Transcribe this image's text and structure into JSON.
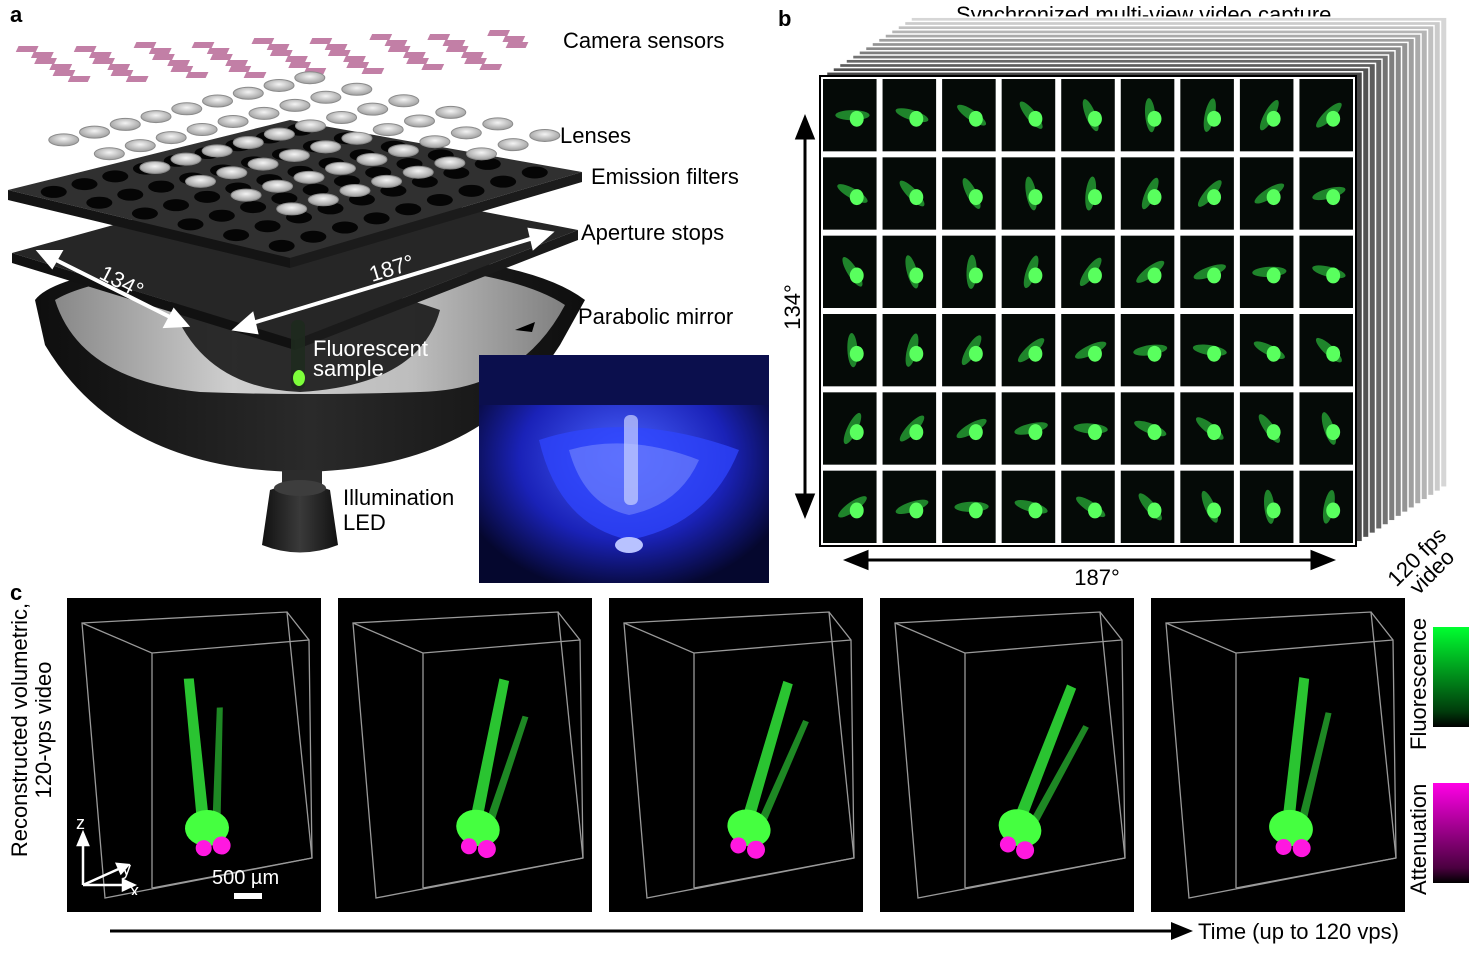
{
  "panel_a": {
    "letter": "a",
    "labels": {
      "camera_sensors": "Camera sensors",
      "lenses": "Lenses",
      "emission_filters": "Emission filters",
      "aperture_stops": "Aperture stops",
      "parabolic_mirror": "Parabolic mirror",
      "fluorescent_sample_line1": "Fluorescent",
      "fluorescent_sample_line2": "sample",
      "illumination_led_line1": "Illumination",
      "illumination_led_line2": "LED",
      "angle_134": "134°",
      "angle_187": "187°"
    },
    "colors": {
      "sensor": "#c27fa6",
      "plate": "#2f2f2f",
      "lens": "#d5d5d5",
      "mirror": "#1c1c1c",
      "photo_blue": "#1f2bd8"
    }
  },
  "panel_b": {
    "letter": "b",
    "title": "Synchronized multi-view video capture",
    "grid": {
      "rows": 6,
      "cols": 9
    },
    "vertical_label": "134°",
    "horizontal_label": "187°",
    "video_label_line1": "120 fps",
    "video_label_line2": "video"
  },
  "panel_c": {
    "letter": "c",
    "ylabel_line1": "Reconstructed volumetric,",
    "ylabel_line2": "120-vps video",
    "axes": {
      "z": "z",
      "y": "y",
      "x": "x"
    },
    "scale_bar": "500 µm",
    "time_label": "Time (up to 120 vps)",
    "frames_count": 5,
    "colorbars": [
      {
        "label": "Fluorescence",
        "color": "#00ff00"
      },
      {
        "label": "Attenuation",
        "color": "#ff00ff"
      }
    ]
  }
}
